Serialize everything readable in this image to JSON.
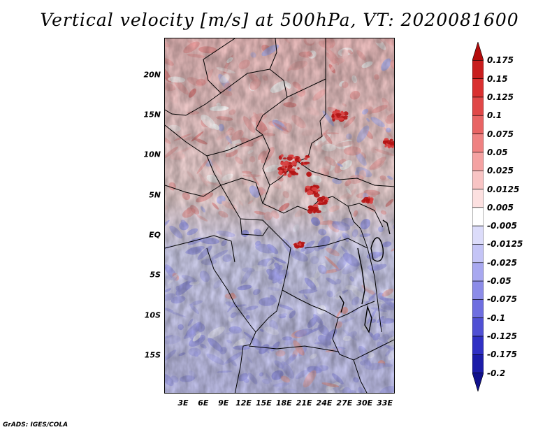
{
  "title": "Vertical velocity [m/s] at 500hPa, VT: 2020081600",
  "credit": "GrADS: IGES/COLA",
  "map": {
    "lat_labels": [
      "20N",
      "15N",
      "10N",
      "5N",
      "EQ",
      "5S",
      "10S",
      "15S"
    ],
    "lat_values": [
      20,
      15,
      10,
      5,
      0,
      -5,
      -10,
      -15
    ],
    "lon_labels": [
      "3E",
      "6E",
      "9E",
      "12E",
      "15E",
      "18E",
      "21E",
      "24E",
      "27E",
      "30E",
      "33E"
    ],
    "lon_values": [
      3,
      6,
      9,
      12,
      15,
      18,
      21,
      24,
      27,
      30,
      33
    ],
    "lat_range": [
      -19.8,
      24.6
    ],
    "lon_range": [
      0.2,
      34.5
    ],
    "strong_ascent_regions": [
      "~20E 10N",
      "~27E 15N",
      "~34E 11N",
      "~21E 7N",
      "~22E 2N",
      "~20E -1N"
    ]
  },
  "colorbar": {
    "labels": [
      "0.175",
      "0.15",
      "0.125",
      "0.1",
      "0.075",
      "0.05",
      "0.025",
      "0.0125",
      "0.005",
      "-0.005",
      "-0.0125",
      "-0.025",
      "-0.05",
      "-0.075",
      "-0.1",
      "-0.125",
      "-0.175",
      "-0.2"
    ],
    "colors": [
      "#b40c0c",
      "#c81e1e",
      "#d93030",
      "#e04848",
      "#e86464",
      "#ef8282",
      "#f4a2a2",
      "#f8c4c4",
      "#fce0e0",
      "#ffffff",
      "#dcdcfa",
      "#c4c4f6",
      "#a8a8f0",
      "#8c8ce8",
      "#6e6ee0",
      "#5050d4",
      "#3030c4",
      "#1c1ca8",
      "#10108c"
    ]
  }
}
